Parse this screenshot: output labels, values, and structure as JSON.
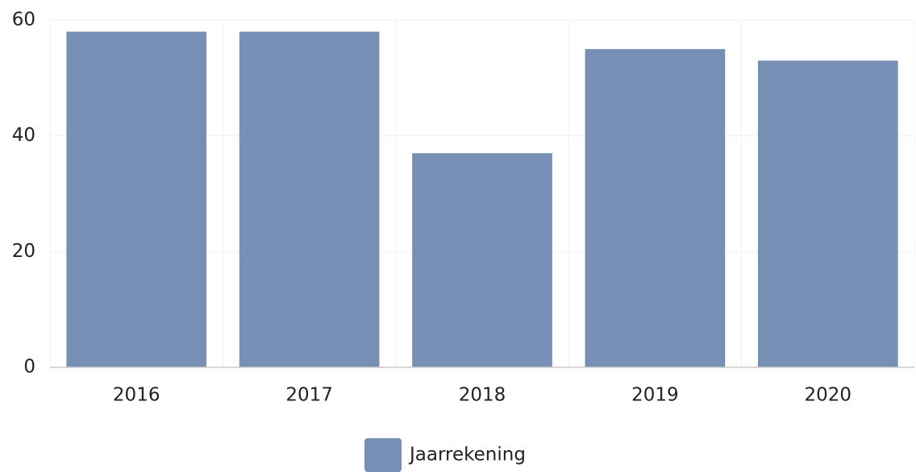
{
  "chart_data": {
    "type": "bar",
    "categories": [
      "2016",
      "2017",
      "2018",
      "2019",
      "2020"
    ],
    "series": [
      {
        "name": "Jaarrekening",
        "color": "#778fb4",
        "values": [
          58,
          58,
          37,
          55,
          53
        ]
      }
    ],
    "ylim": [
      0,
      60
    ],
    "yticks": [
      0,
      20,
      40,
      60
    ],
    "grid": true,
    "legend": "bottom"
  }
}
